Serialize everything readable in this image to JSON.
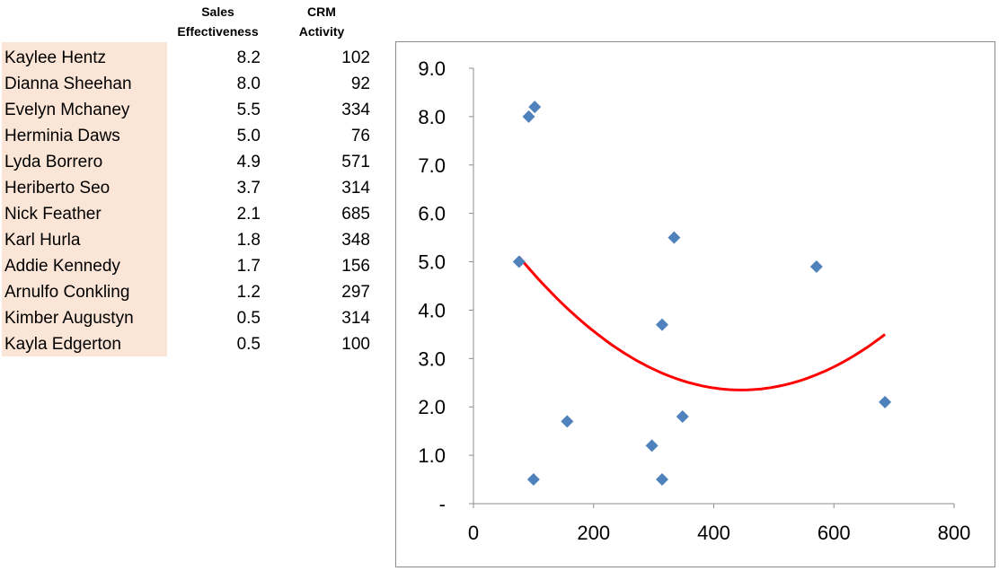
{
  "table": {
    "headers": {
      "sales_line1": "Sales",
      "sales_line2": "Effectiveness",
      "crm_line1": "CRM",
      "crm_line2": "Activity"
    },
    "rows": [
      {
        "name": "Kaylee Hentz",
        "sales": "8.2",
        "crm": "102"
      },
      {
        "name": "Dianna Sheehan",
        "sales": "8.0",
        "crm": "92"
      },
      {
        "name": "Evelyn Mchaney",
        "sales": "5.5",
        "crm": "334"
      },
      {
        "name": "Herminia Daws",
        "sales": "5.0",
        "crm": "76"
      },
      {
        "name": "Lyda Borrero",
        "sales": "4.9",
        "crm": "571"
      },
      {
        "name": "Heriberto Seo",
        "sales": "3.7",
        "crm": "314"
      },
      {
        "name": "Nick Feather",
        "sales": "2.1",
        "crm": "685"
      },
      {
        "name": "Karl Hurla",
        "sales": "1.8",
        "crm": "348"
      },
      {
        "name": "Addie Kennedy",
        "sales": "1.7",
        "crm": "156"
      },
      {
        "name": "Arnulfo Conkling",
        "sales": "1.2",
        "crm": "297"
      },
      {
        "name": "Kimber Augustyn",
        "sales": "0.5",
        "crm": "314"
      },
      {
        "name": "Kayla Edgerton",
        "sales": "0.5",
        "crm": "100"
      }
    ]
  },
  "colors": {
    "name_fill": "#fbe5d6",
    "marker": "#4f81bd",
    "trendline": "#ff0000",
    "axis": "#8c8c8c"
  },
  "chart_data": {
    "type": "scatter",
    "title": "",
    "xlabel": "",
    "ylabel": "",
    "xlim": [
      0,
      800
    ],
    "ylim": [
      0,
      9
    ],
    "x_ticks": [
      0,
      200,
      400,
      600,
      800
    ],
    "x_tick_labels": [
      "0",
      "200",
      "400",
      "600",
      "800"
    ],
    "y_ticks": [
      0,
      1,
      2,
      3,
      4,
      5,
      6,
      7,
      8,
      9
    ],
    "y_tick_labels": [
      "-",
      "1.0",
      "2.0",
      "3.0",
      "4.0",
      "5.0",
      "6.0",
      "7.0",
      "8.0",
      "9.0"
    ],
    "grid": false,
    "legend": "none",
    "marker": "diamond",
    "points": [
      {
        "x": 102,
        "y": 8.2
      },
      {
        "x": 92,
        "y": 8.0
      },
      {
        "x": 334,
        "y": 5.5
      },
      {
        "x": 76,
        "y": 5.0
      },
      {
        "x": 571,
        "y": 4.9
      },
      {
        "x": 314,
        "y": 3.7
      },
      {
        "x": 685,
        "y": 2.1
      },
      {
        "x": 348,
        "y": 1.8
      },
      {
        "x": 156,
        "y": 1.7
      },
      {
        "x": 297,
        "y": 1.2
      },
      {
        "x": 314,
        "y": 0.5
      },
      {
        "x": 100,
        "y": 0.5
      }
    ],
    "trendline": {
      "type": "polynomial",
      "order": 2,
      "x_range": [
        76,
        685
      ],
      "points": [
        {
          "x": 76,
          "y": 5.1
        },
        {
          "x": 442,
          "y": 2.35
        },
        {
          "x": 685,
          "y": 3.5
        }
      ]
    }
  }
}
